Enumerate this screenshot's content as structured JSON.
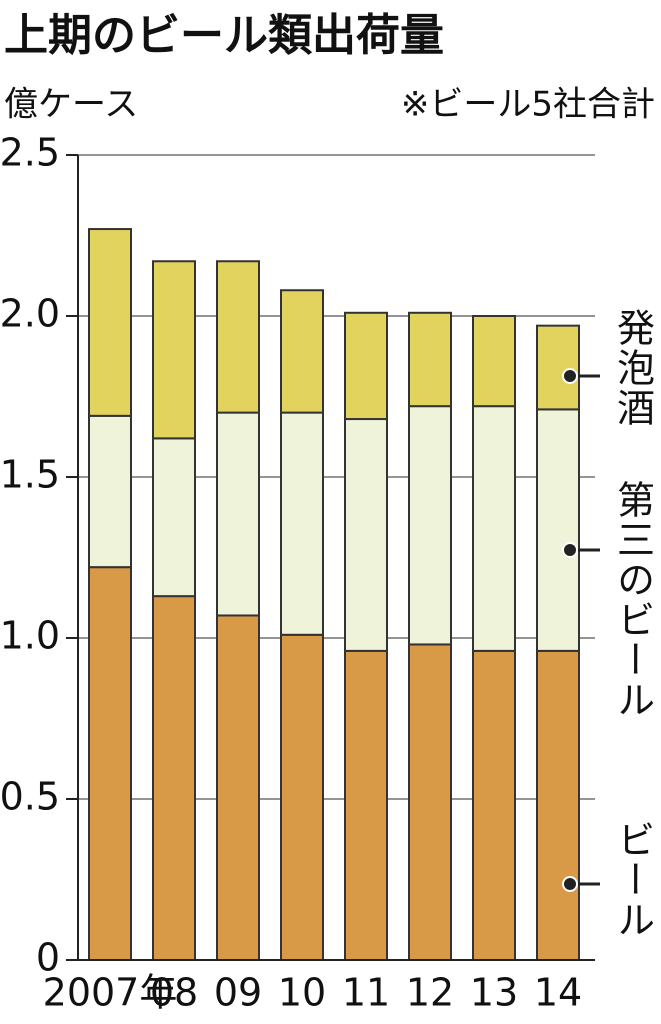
{
  "chart_data": {
    "type": "stacked-bar",
    "title": "上期のビール類出荷量",
    "y_label": "億ケース",
    "note": "※ビール5社合計",
    "categories": [
      "2007年",
      "08",
      "09",
      "10",
      "11",
      "12",
      "13",
      "14"
    ],
    "series": [
      {
        "name": "ビール",
        "color": "#d89a47",
        "values": [
          1.22,
          1.13,
          1.07,
          1.01,
          0.96,
          0.98,
          0.96,
          0.96
        ]
      },
      {
        "name": "第三のビール",
        "color": "#eef3d9",
        "values": [
          0.47,
          0.49,
          0.63,
          0.69,
          0.72,
          0.74,
          0.76,
          0.75
        ]
      },
      {
        "name": "発泡酒",
        "color": "#e2d35e",
        "values": [
          0.58,
          0.55,
          0.47,
          0.38,
          0.33,
          0.29,
          0.28,
          0.26
        ]
      }
    ],
    "ylim": [
      0,
      2.5
    ],
    "yticks": [
      0,
      0.5,
      {
        "value": 1,
        "label": "1.0"
      },
      1.5,
      {
        "value": 2,
        "label": "2.0"
      },
      2.5
    ],
    "grid": true
  }
}
